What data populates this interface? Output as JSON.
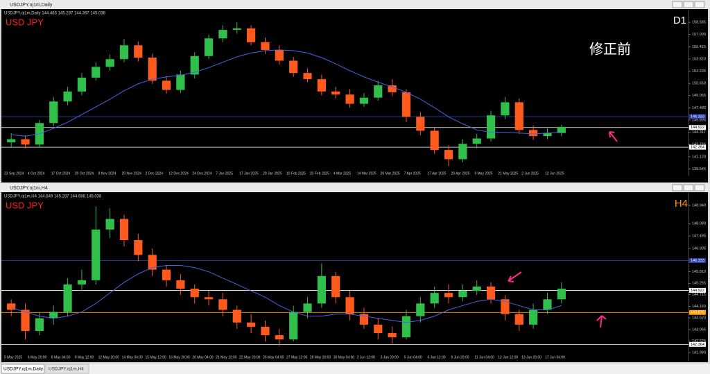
{
  "windows": [
    {
      "title": "USDJPY.oj1m,Daily",
      "info": "USDJPY.oj1m,Daily  144.465 145.287 144.367 145.038",
      "symbol": "USD JPY",
      "timeframe": "D1",
      "note": "修正前"
    },
    {
      "title": "USDJPY.oj1m,H4",
      "info": "USDJPY.oj1m,H4  144.849 145.287 144.688 145.038",
      "symbol": "USD JPY",
      "timeframe": "H4"
    }
  ],
  "tabs": [
    "USDJPY.oj1m,Daily",
    "USDJPY.oj1m,H4"
  ],
  "chart_data": [
    {
      "type": "candlestick",
      "up_color": "#2fbf4a",
      "down_color": "#ff5a1e",
      "ma_color": "#4a63e6",
      "ylim": [
        139.4,
        159.5
      ],
      "yticks": [
        158.585,
        {
          "value": 157,
          "label": "157.000"
        },
        155.415,
        {
          "value": 153.82,
          "label": "153.820"
        },
        152.235,
        {
          "value": 150.65,
          "label": "150.650"
        },
        149.065,
        {
          "value": 147.48,
          "label": "147.480"
        },
        145.895,
        144.311,
        142.726,
        {
          "value": 141.12,
          "label": "141.120"
        },
        139.546
      ],
      "x_labels": [
        "23 Sep 2024",
        "4 Oct 2024",
        "17 Oct 2024",
        "29 Oct 2024",
        "8 Nov 2024",
        "20 Nov 2024",
        "2 Dec 2024",
        "12 Dec 2024",
        "24 Dec 2024",
        "7 Jan 2025",
        "17 Jan 2025",
        "29 Jan 2025",
        "10 Feb 2025",
        "20 Feb 2025",
        "4 Mar 2025",
        "14 Mar 2025",
        "26 Mar 2025",
        "7 Apr 2025",
        "17 Apr 2025",
        "29 Apr 2025",
        "9 May 2025",
        "21 May 2025",
        "2 Jun 2025",
        "12 Jun 2025"
      ],
      "hlines": [
        {
          "value": 146.333,
          "color": "#2d3caa"
        },
        {
          "value": 144.922,
          "color": "#ffffff"
        },
        {
          "value": 142.364,
          "color": "#ffffff"
        }
      ],
      "open": [
        143.0,
        143.4,
        142.7,
        145.5,
        148.3,
        149.6,
        151.4,
        152.8,
        153.8,
        155.6,
        154.0,
        151.0,
        149.8,
        151.8,
        154.2,
        156.5,
        157.6,
        157.8,
        156.0,
        155.0,
        153.6,
        152.0,
        151.2,
        149.6,
        149.2,
        148.0,
        148.8,
        150.4,
        149.5,
        146.3,
        144.5,
        142.0,
        140.8,
        142.8,
        143.5,
        146.5,
        148.2,
        144.6,
        143.8,
        144.2
      ],
      "high": [
        144.2,
        143.9,
        145.9,
        148.9,
        150.2,
        152.0,
        153.4,
        154.4,
        156.4,
        156.1,
        154.5,
        151.6,
        152.3,
        154.7,
        157.0,
        158.2,
        158.6,
        158.2,
        156.6,
        155.6,
        154.1,
        152.6,
        151.8,
        150.2,
        149.9,
        149.4,
        151.0,
        151.2,
        149.9,
        146.9,
        145.0,
        142.6,
        143.4,
        144.1,
        147.1,
        148.9,
        148.7,
        145.2,
        144.8,
        145.3
      ],
      "low": [
        142.4,
        142.2,
        142.3,
        145.1,
        147.8,
        149.1,
        151.0,
        152.3,
        153.4,
        153.5,
        150.6,
        149.3,
        149.4,
        151.3,
        153.8,
        156.0,
        157.1,
        155.6,
        154.5,
        153.1,
        151.5,
        150.8,
        149.1,
        148.7,
        147.5,
        147.6,
        148.4,
        149.0,
        145.6,
        143.9,
        141.5,
        139.9,
        140.4,
        142.2,
        143.1,
        146.0,
        144.1,
        143.3,
        143.4,
        143.8
      ],
      "close": [
        143.4,
        142.7,
        145.5,
        148.3,
        149.6,
        151.4,
        152.8,
        153.8,
        155.6,
        154.0,
        151.0,
        149.8,
        151.8,
        154.2,
        156.5,
        157.6,
        157.8,
        156.0,
        155.0,
        153.6,
        152.0,
        151.2,
        149.6,
        149.2,
        148.0,
        148.8,
        150.4,
        149.5,
        146.3,
        144.5,
        142.0,
        140.8,
        142.8,
        143.5,
        146.5,
        148.2,
        144.6,
        143.8,
        144.2,
        145.0
      ],
      "ma": [
        144.0,
        143.8,
        144.1,
        144.8,
        145.6,
        146.6,
        147.6,
        148.6,
        149.7,
        150.6,
        151.2,
        151.5,
        151.7,
        152.1,
        152.7,
        153.4,
        154.1,
        154.6,
        154.9,
        155.0,
        154.9,
        154.6,
        154.0,
        153.2,
        152.3,
        151.5,
        150.8,
        150.2,
        149.5,
        148.6,
        147.5,
        146.3,
        145.4,
        144.6,
        144.3,
        144.3,
        144.2,
        144.1,
        144.2,
        144.3
      ]
    },
    {
      "type": "candlestick",
      "up_color": "#2fbf4a",
      "down_color": "#ff5a1e",
      "ma_color": "#4a63e6",
      "ylim": [
        141.85,
        149.27
      ],
      "yticks": [
        {
          "value": 148.94,
          "label": "148.940"
        },
        {
          "value": 148.08,
          "label": "148.080"
        },
        147.495,
        146.905,
        {
          "value": 146.35,
          "label": "146.350"
        },
        {
          "value": 145.81,
          "label": "145.810"
        },
        145.255,
        144.715,
        {
          "value": 144.16,
          "label": "144.160"
        },
        {
          "value": 143.62,
          "label": "143.620"
        },
        143.065,
        142.525,
        {
          "value": 141.98,
          "label": "141.980"
        }
      ],
      "x_labels": [
        "5 May 2025",
        "6 May 20:00",
        "8 May 04:00",
        "9 May 12:00",
        "12 May 20:00",
        "14 May 04:00",
        "15 May 12:00",
        "16 May 20:00",
        "20 May 04:00",
        "21 May 12:00",
        "22 May 20:00",
        "26 May 04:00",
        "27 May 12:00",
        "28 May 20:00",
        "30 May 04:00",
        "2 Jun 12:00",
        "3 Jun 20:00",
        "5 Jun 04:00",
        "6 Jun 12:00",
        "9 Jun 20:00",
        "11 Jun 04:00",
        "12 Jun 12:00",
        "13 Jun 20:00",
        "17 Jun 04:00"
      ],
      "hlines": [
        {
          "value": 146.333,
          "color": "#2d3caa"
        },
        {
          "value": 144.922,
          "color": "#ffffff"
        },
        {
          "value": 143.876,
          "color": "#ff9900"
        },
        {
          "value": 142.364,
          "color": "#ffffff"
        }
      ],
      "open": [
        144.3,
        144.0,
        143.0,
        143.6,
        143.9,
        145.2,
        145.4,
        147.8,
        148.3,
        147.3,
        146.6,
        145.9,
        145.4,
        145.0,
        144.6,
        144.5,
        144.0,
        143.4,
        143.2,
        142.8,
        142.6,
        143.9,
        144.3,
        145.6,
        144.6,
        143.8,
        143.3,
        142.9,
        142.7,
        143.7,
        144.3,
        144.8,
        144.6,
        144.9,
        145.1,
        144.5,
        143.8,
        143.3,
        144.0,
        144.5
      ],
      "high": [
        144.5,
        144.3,
        143.9,
        144.2,
        145.5,
        145.9,
        148.9,
        148.8,
        148.5,
        147.6,
        146.9,
        146.1,
        145.7,
        145.2,
        144.9,
        144.8,
        144.2,
        143.8,
        143.5,
        143.1,
        144.2,
        144.6,
        146.2,
        145.8,
        144.9,
        144.1,
        143.6,
        143.2,
        144.0,
        144.6,
        145.1,
        145.2,
        145.2,
        145.4,
        145.3,
        144.7,
        144.0,
        144.3,
        144.8,
        145.3
      ],
      "low": [
        143.7,
        142.6,
        142.8,
        143.3,
        143.7,
        144.9,
        145.2,
        147.4,
        147.0,
        146.3,
        145.6,
        145.1,
        144.7,
        144.3,
        144.2,
        143.7,
        143.1,
        142.9,
        142.5,
        142.3,
        142.5,
        143.6,
        144.1,
        144.3,
        143.5,
        143.1,
        142.6,
        142.4,
        142.6,
        143.4,
        144.1,
        144.3,
        144.4,
        144.7,
        144.3,
        143.5,
        143.0,
        143.1,
        143.8,
        144.3
      ],
      "close": [
        144.0,
        143.0,
        143.6,
        143.9,
        145.2,
        145.4,
        147.8,
        148.3,
        147.3,
        146.6,
        145.9,
        145.4,
        145.0,
        144.6,
        144.5,
        144.0,
        143.4,
        143.2,
        142.8,
        142.6,
        143.9,
        144.3,
        145.6,
        144.6,
        143.8,
        143.3,
        142.9,
        142.7,
        143.7,
        144.3,
        144.8,
        144.6,
        144.9,
        145.1,
        144.5,
        143.8,
        143.3,
        144.0,
        144.5,
        145.0
      ],
      "ma": [
        144.1,
        143.9,
        143.7,
        143.6,
        143.7,
        143.9,
        144.3,
        144.8,
        145.3,
        145.7,
        146.0,
        146.1,
        146.1,
        146.0,
        145.8,
        145.5,
        145.2,
        144.9,
        144.6,
        144.2,
        143.9,
        143.7,
        143.7,
        143.8,
        143.8,
        143.7,
        143.6,
        143.5,
        143.4,
        143.5,
        143.7,
        144.0,
        144.2,
        144.4,
        144.5,
        144.4,
        144.2,
        144.0,
        144.0,
        144.2
      ]
    }
  ]
}
